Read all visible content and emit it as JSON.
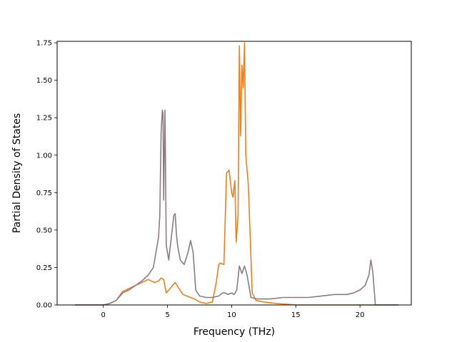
{
  "chart_data": {
    "type": "line",
    "xlabel": "Frequency (THz)",
    "ylabel": "Partial Density of States",
    "xlim": [
      -3.6,
      24.0
    ],
    "ylim": [
      0.0,
      1.76
    ],
    "xticks": [
      0,
      5,
      10,
      15,
      20
    ],
    "yticks": [
      0.0,
      0.25,
      0.5,
      0.75,
      1.0,
      1.25,
      1.5,
      1.75
    ],
    "xtick_labels": [
      "0",
      "5",
      "10",
      "15",
      "20"
    ],
    "ytick_labels": [
      "0.00",
      "0.25",
      "0.50",
      "0.75",
      "1.00",
      "1.25",
      "1.50",
      "1.75"
    ],
    "grid": false,
    "legend": "none",
    "series": [
      {
        "color": "#e8821e",
        "x": [
          -2.2,
          0.0,
          0.5,
          1.0,
          1.5,
          2.0,
          2.5,
          3.0,
          3.5,
          4.0,
          4.3,
          4.5,
          4.7,
          4.9,
          5.1,
          5.3,
          5.6,
          5.9,
          6.2,
          6.5,
          6.8,
          7.1,
          7.5,
          8.0,
          8.5,
          8.8,
          9.0,
          9.1,
          9.4,
          9.6,
          9.8,
          10.0,
          10.1,
          10.25,
          10.35,
          10.5,
          10.6,
          10.7,
          10.8,
          10.9,
          11.0,
          11.1,
          11.3,
          11.6,
          11.9,
          12.5,
          13.5,
          15,
          17,
          19,
          20,
          21,
          23
        ],
        "y": [
          0.0,
          0.0,
          0.01,
          0.03,
          0.09,
          0.11,
          0.13,
          0.15,
          0.17,
          0.15,
          0.16,
          0.18,
          0.17,
          0.08,
          0.1,
          0.12,
          0.15,
          0.11,
          0.07,
          0.06,
          0.05,
          0.04,
          0.02,
          0.01,
          0.02,
          0.15,
          0.27,
          0.28,
          0.27,
          0.88,
          0.9,
          0.75,
          0.72,
          0.83,
          0.42,
          0.6,
          1.73,
          1.13,
          1.6,
          1.45,
          1.75,
          1.0,
          0.8,
          0.08,
          0.03,
          0.02,
          0.01,
          0.0,
          0.0,
          0.0,
          0.0,
          0.0,
          0.0
        ]
      },
      {
        "color": "#8c7c80",
        "x": [
          -2.2,
          0.0,
          0.5,
          1.0,
          1.5,
          2.0,
          2.5,
          3.0,
          3.5,
          3.9,
          4.1,
          4.3,
          4.4,
          4.5,
          4.6,
          4.65,
          4.7,
          4.8,
          4.85,
          4.9,
          5.1,
          5.3,
          5.5,
          5.6,
          5.7,
          5.8,
          6.0,
          6.3,
          6.6,
          6.8,
          7.0,
          7.2,
          7.5,
          8.0,
          8.5,
          9.0,
          9.3,
          9.5,
          9.7,
          10.0,
          10.2,
          10.4,
          10.6,
          10.8,
          11.0,
          11.2,
          11.5,
          12.0,
          13.0,
          14.0,
          15.0,
          16.0,
          17.0,
          18.0,
          19.0,
          19.5,
          20.0,
          20.4,
          20.7,
          20.85,
          21.0,
          21.2,
          23.0
        ],
        "y": [
          0.0,
          0.0,
          0.01,
          0.03,
          0.08,
          0.1,
          0.13,
          0.16,
          0.2,
          0.25,
          0.35,
          0.45,
          0.6,
          1.15,
          1.3,
          1.28,
          0.7,
          1.3,
          0.9,
          0.4,
          0.3,
          0.45,
          0.6,
          0.61,
          0.47,
          0.39,
          0.3,
          0.27,
          0.35,
          0.43,
          0.35,
          0.1,
          0.06,
          0.05,
          0.05,
          0.06,
          0.08,
          0.08,
          0.07,
          0.08,
          0.07,
          0.1,
          0.26,
          0.21,
          0.26,
          0.2,
          0.05,
          0.04,
          0.04,
          0.05,
          0.05,
          0.05,
          0.06,
          0.07,
          0.07,
          0.08,
          0.1,
          0.13,
          0.2,
          0.3,
          0.22,
          0.0,
          0.0
        ]
      }
    ]
  }
}
